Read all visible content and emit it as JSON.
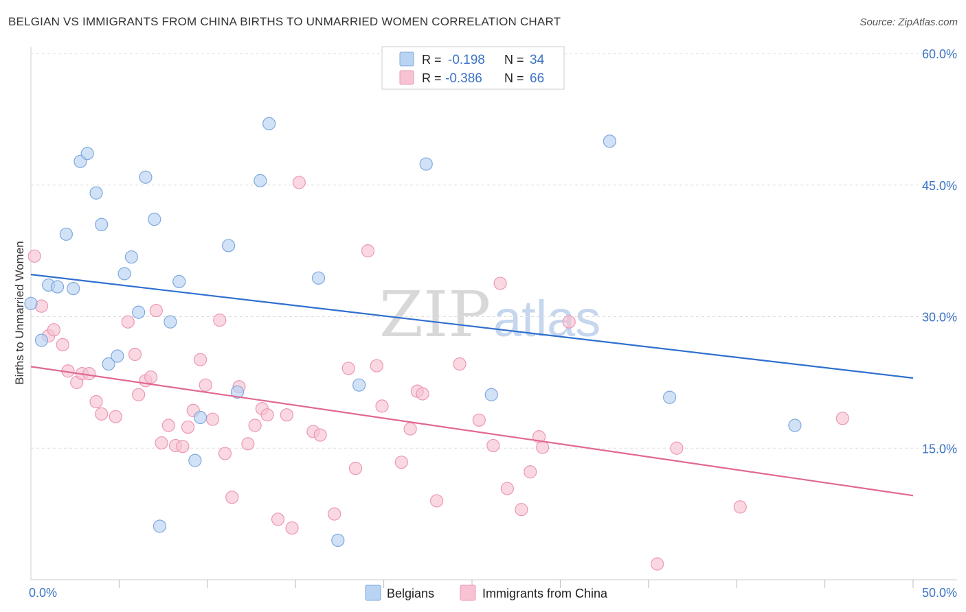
{
  "header": {
    "title": "BELGIAN VS IMMIGRANTS FROM CHINA BIRTHS TO UNMARRIED WOMEN CORRELATION CHART",
    "source": "Source: ZipAtlas.com"
  },
  "colors": {
    "belgian_fill": "#b9d3f3",
    "belgian_stroke": "#7ea8de",
    "belgian_line": "#2f6fcf",
    "china_fill": "#f7c3d3",
    "china_stroke": "#ec97b3",
    "china_line": "#e06892",
    "tick_text": "#3b73c4"
  },
  "watermark": {
    "part1": "ZIP",
    "part2": "atlas"
  },
  "chart_data": {
    "type": "scatter",
    "title": "BELGIAN VS IMMIGRANTS FROM CHINA BIRTHS TO UNMARRIED WOMEN CORRELATION CHART",
    "xlabel": "",
    "ylabel": "Births to Unmarried Women",
    "xlim": [
      0,
      50
    ],
    "ylim": [
      0,
      60
    ],
    "x_tick_labels": [
      "0.0%",
      "50.0%"
    ],
    "y_ticks": [
      15,
      30,
      45,
      60
    ],
    "y_tick_labels": [
      "15.0%",
      "30.0%",
      "45.0%",
      "60.0%"
    ],
    "legend": [
      {
        "r_label": "R =",
        "r_value": "-0.198",
        "n_label": "N =",
        "n_value": "34"
      },
      {
        "r_label": "R =",
        "r_value": "-0.386",
        "n_label": "N =",
        "n_value": "66"
      }
    ],
    "series": [
      {
        "name": "Belgians",
        "trend": {
          "x": [
            0,
            50
          ],
          "y": [
            34.8,
            23.0
          ]
        },
        "points": [
          [
            0.0,
            31.5
          ],
          [
            0.6,
            27.3
          ],
          [
            1.0,
            33.6
          ],
          [
            1.5,
            33.4
          ],
          [
            2.0,
            39.4
          ],
          [
            2.4,
            33.2
          ],
          [
            2.8,
            47.7
          ],
          [
            3.2,
            48.6
          ],
          [
            3.7,
            44.1
          ],
          [
            4.0,
            40.5
          ],
          [
            4.4,
            24.6
          ],
          [
            4.9,
            25.5
          ],
          [
            5.3,
            34.9
          ],
          [
            5.7,
            36.8
          ],
          [
            6.1,
            30.5
          ],
          [
            6.5,
            45.9
          ],
          [
            7.0,
            41.1
          ],
          [
            7.3,
            6.1
          ],
          [
            7.9,
            29.4
          ],
          [
            8.4,
            34.0
          ],
          [
            9.3,
            13.6
          ],
          [
            9.6,
            18.5
          ],
          [
            11.2,
            38.1
          ],
          [
            11.7,
            21.4
          ],
          [
            13.0,
            45.5
          ],
          [
            13.5,
            52.0
          ],
          [
            16.3,
            34.4
          ],
          [
            17.4,
            4.5
          ],
          [
            18.6,
            22.2
          ],
          [
            22.4,
            47.4
          ],
          [
            26.1,
            21.1
          ],
          [
            32.8,
            50.0
          ],
          [
            36.2,
            20.8
          ],
          [
            43.3,
            17.6
          ]
        ]
      },
      {
        "name": "Immigrants from China",
        "trend": {
          "x": [
            0,
            50
          ],
          "y": [
            24.3,
            9.6
          ]
        },
        "points": [
          [
            0.2,
            36.9
          ],
          [
            0.6,
            31.2
          ],
          [
            1.0,
            27.8
          ],
          [
            1.3,
            28.5
          ],
          [
            1.8,
            26.8
          ],
          [
            2.1,
            23.8
          ],
          [
            2.6,
            22.5
          ],
          [
            2.9,
            23.5
          ],
          [
            3.3,
            23.5
          ],
          [
            3.7,
            20.3
          ],
          [
            4.0,
            18.9
          ],
          [
            4.8,
            18.6
          ],
          [
            5.5,
            29.4
          ],
          [
            5.9,
            25.7
          ],
          [
            6.1,
            21.1
          ],
          [
            6.5,
            22.7
          ],
          [
            6.8,
            23.1
          ],
          [
            7.1,
            30.7
          ],
          [
            7.4,
            15.6
          ],
          [
            7.8,
            17.6
          ],
          [
            8.2,
            15.3
          ],
          [
            8.6,
            15.2
          ],
          [
            8.9,
            17.4
          ],
          [
            9.2,
            19.3
          ],
          [
            9.6,
            25.1
          ],
          [
            9.9,
            22.2
          ],
          [
            10.3,
            18.3
          ],
          [
            10.7,
            29.6
          ],
          [
            11.0,
            14.4
          ],
          [
            11.4,
            9.4
          ],
          [
            11.8,
            22.0
          ],
          [
            12.3,
            15.5
          ],
          [
            12.7,
            17.6
          ],
          [
            13.1,
            19.5
          ],
          [
            13.4,
            18.8
          ],
          [
            14.0,
            6.9
          ],
          [
            14.5,
            18.8
          ],
          [
            14.8,
            5.9
          ],
          [
            15.2,
            45.3
          ],
          [
            16.0,
            16.9
          ],
          [
            16.4,
            16.5
          ],
          [
            17.2,
            7.5
          ],
          [
            18.0,
            24.1
          ],
          [
            18.4,
            12.7
          ],
          [
            19.1,
            37.5
          ],
          [
            19.6,
            24.4
          ],
          [
            19.9,
            19.8
          ],
          [
            21.0,
            13.4
          ],
          [
            21.5,
            17.2
          ],
          [
            21.9,
            21.5
          ],
          [
            22.2,
            21.2
          ],
          [
            23.0,
            9.0
          ],
          [
            24.3,
            24.6
          ],
          [
            25.4,
            18.2
          ],
          [
            26.2,
            15.3
          ],
          [
            26.6,
            33.8
          ],
          [
            27.0,
            10.4
          ],
          [
            27.8,
            8.0
          ],
          [
            28.3,
            12.3
          ],
          [
            28.8,
            16.3
          ],
          [
            29.0,
            15.1
          ],
          [
            30.5,
            29.4
          ],
          [
            35.5,
            1.8
          ],
          [
            36.6,
            15.0
          ],
          [
            40.2,
            8.3
          ],
          [
            46.0,
            18.4
          ]
        ]
      }
    ]
  }
}
